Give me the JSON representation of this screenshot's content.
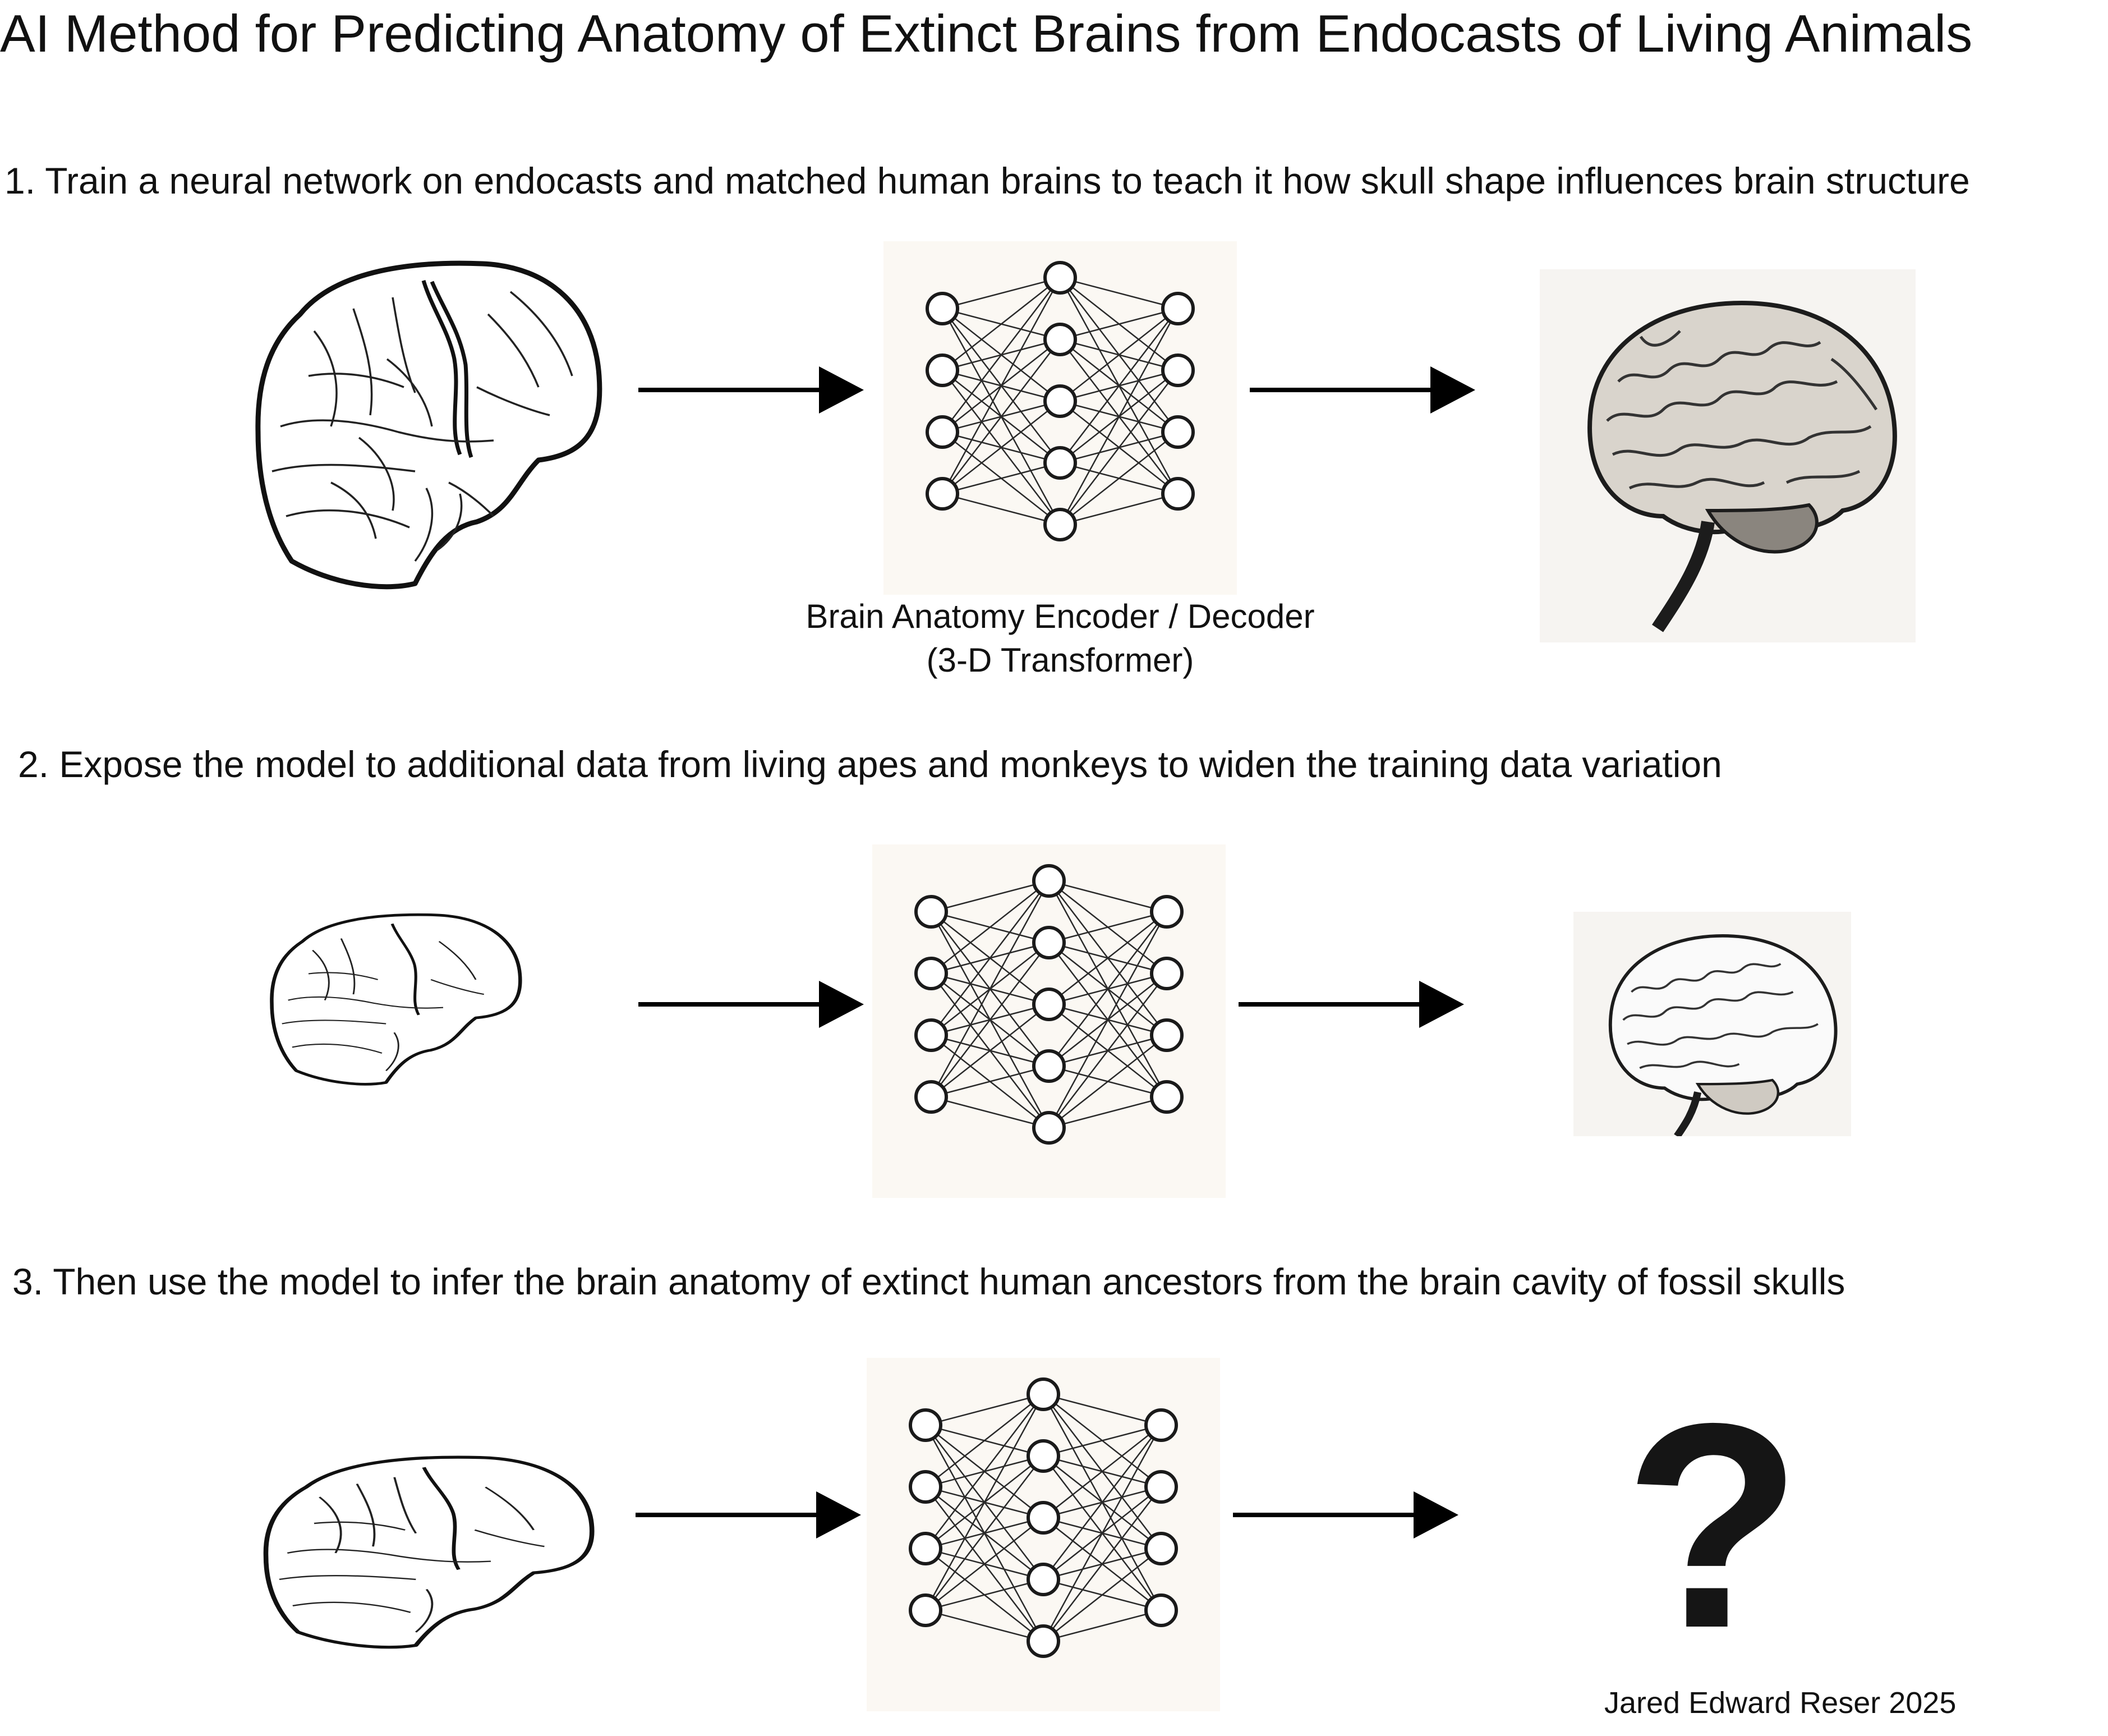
{
  "title": "AI Method for Predicting Anatomy of Extinct Brains from Endocasts of Living Animals",
  "steps": [
    {
      "label": "1. Train a neural network on endocasts and matched human brains to teach it how skull shape influences brain structure"
    },
    {
      "label": "2. Expose the model to additional data from living apes and monkeys to widen the training data variation"
    },
    {
      "label": "3. Then use the model to infer the brain anatomy of extinct human ancestors from the brain cavity of fossil skulls"
    }
  ],
  "network": {
    "caption_line1": "Brain Anatomy Encoder / Decoder",
    "caption_line2": "(3-D Transformer)"
  },
  "result": {
    "unknown_symbol": "?"
  },
  "credit": "Jared Edward Reser 2025",
  "icons": [
    "endocast-drawing",
    "neural-network-diagram",
    "brain-illustration",
    "arrow-right",
    "question-mark"
  ]
}
